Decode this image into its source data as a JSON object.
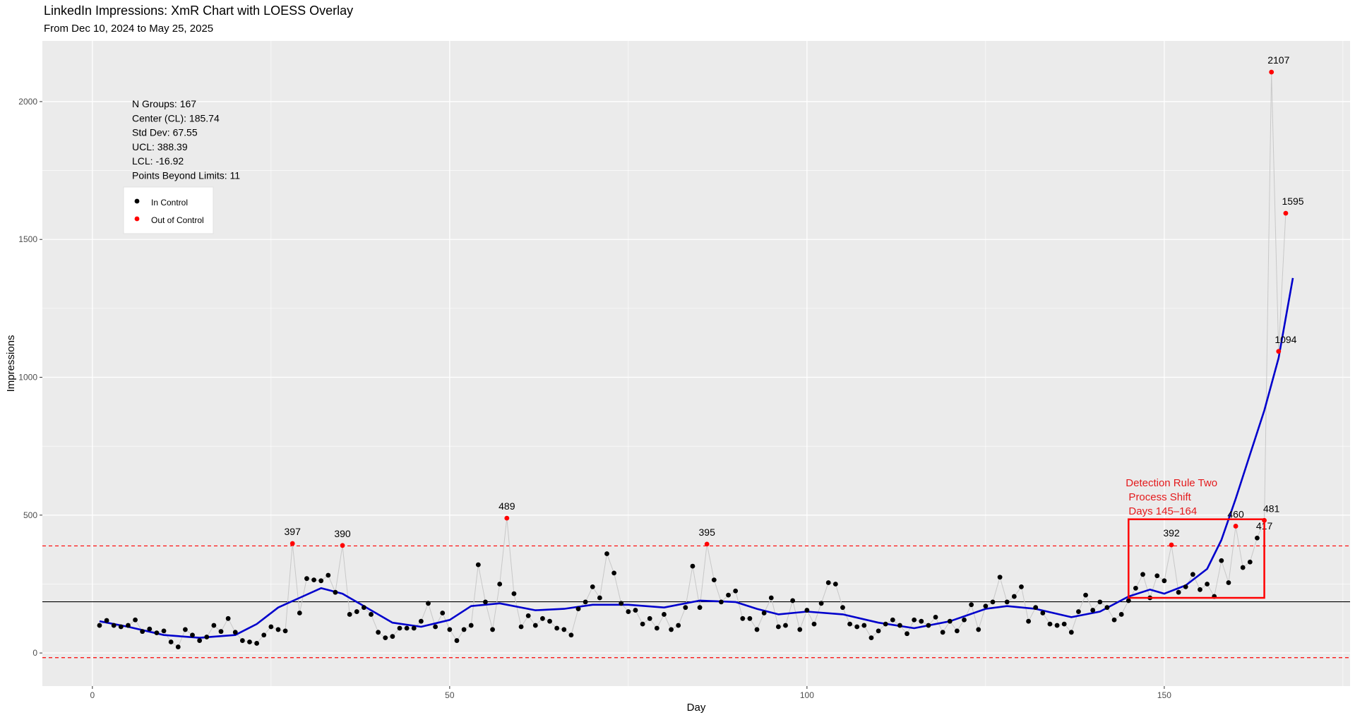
{
  "header": {
    "title": "LinkedIn Impressions: XmR Chart with LOESS Overlay",
    "subtitle": "From Dec 10, 2024 to May 25, 2025"
  },
  "colors": {
    "panel": "#ebebeb",
    "grid": "#ffffff",
    "series_line": "#c8c8c8",
    "in_control": "#000000",
    "out_of_control": "#ff0000",
    "loess": "#0000cc",
    "center": "#000000",
    "limits": "#ff0000",
    "rule_box": "#ff0000"
  },
  "stats": {
    "lines": [
      "N Groups: 167",
      "Center (CL): 185.74",
      "Std Dev: 67.55",
      "UCL: 388.39",
      "LCL: -16.92",
      "Points Beyond Limits: 11"
    ]
  },
  "legend": {
    "in_control": "In Control",
    "out_of_control": "Out of Control"
  },
  "chart_data": {
    "type": "scatter",
    "xlabel": "Day",
    "ylabel": "Impressions",
    "xlim": [
      -7,
      176
    ],
    "ylim": [
      -120,
      2220
    ],
    "x_ticks": [
      0,
      50,
      100,
      150
    ],
    "y_ticks": [
      0,
      500,
      1000,
      1500,
      2000
    ],
    "center_line": 185.74,
    "ucl": 388.39,
    "lcl": -16.92,
    "values": [
      100,
      118,
      100,
      95,
      100,
      120,
      78,
      87,
      73,
      80,
      40,
      22,
      85,
      65,
      45,
      58,
      100,
      78,
      125,
      75,
      45,
      40,
      35,
      65,
      95,
      85,
      80,
      397,
      145,
      270,
      265,
      262,
      282,
      220,
      390,
      140,
      150,
      165,
      140,
      75,
      55,
      60,
      90,
      90,
      90,
      115,
      180,
      95,
      145,
      85,
      45,
      85,
      100,
      320,
      185,
      85,
      250,
      489,
      215,
      95,
      135,
      100,
      125,
      115,
      90,
      85,
      65,
      160,
      185,
      240,
      200,
      360,
      290,
      180,
      150,
      155,
      105,
      125,
      90,
      140,
      85,
      100,
      165,
      315,
      165,
      395,
      265,
      185,
      210,
      225,
      125,
      125,
      85,
      145,
      200,
      95,
      100,
      190,
      85,
      155,
      105,
      180,
      255,
      250,
      165,
      105,
      95,
      100,
      55,
      80,
      105,
      120,
      100,
      70,
      120,
      115,
      100,
      130,
      75,
      115,
      80,
      120,
      175,
      85,
      170,
      185,
      275,
      185,
      205,
      240,
      115,
      165,
      145,
      105,
      100,
      105,
      75,
      150,
      210,
      155,
      185,
      165,
      120,
      140,
      190,
      235,
      285,
      200,
      280,
      262,
      392,
      220,
      240,
      285,
      230,
      250,
      205,
      335,
      255,
      460,
      310,
      330,
      417,
      481,
      2107,
      1094,
      1595
    ],
    "out_of_control_labels": [
      {
        "day": 28,
        "value": 397,
        "label": "397"
      },
      {
        "day": 35,
        "value": 390,
        "label": "390"
      },
      {
        "day": 58,
        "value": 489,
        "label": "489"
      },
      {
        "day": 86,
        "value": 395,
        "label": "395"
      },
      {
        "day": 151,
        "value": 392,
        "label": "392"
      },
      {
        "day": 160,
        "value": 460,
        "label": "460"
      },
      {
        "day": 164,
        "value": 417,
        "label": "417"
      },
      {
        "day": 165,
        "value": 481,
        "label": "481"
      },
      {
        "day": 166,
        "value": 2107,
        "label": "2107"
      },
      {
        "day": 167,
        "value": 1094,
        "label": "1094"
      },
      {
        "day": 168,
        "value": 1595,
        "label": "1595"
      }
    ],
    "loess": {
      "x": [
        1,
        5,
        10,
        15,
        20,
        23,
        26,
        29,
        32,
        35,
        38,
        42,
        46,
        50,
        53,
        57,
        62,
        66,
        70,
        75,
        80,
        85,
        90,
        93,
        96,
        100,
        105,
        110,
        115,
        120,
        125,
        128,
        132,
        137,
        141,
        145,
        148,
        150,
        153,
        156,
        158,
        160,
        162,
        164,
        166,
        168
      ],
      "y": [
        115,
        95,
        65,
        55,
        65,
        105,
        165,
        200,
        235,
        215,
        170,
        110,
        95,
        120,
        170,
        180,
        155,
        160,
        175,
        175,
        165,
        190,
        185,
        160,
        140,
        150,
        140,
        110,
        90,
        115,
        160,
        170,
        160,
        130,
        150,
        205,
        230,
        215,
        245,
        305,
        410,
        560,
        720,
        880,
        1070,
        1360
      ]
    },
    "rule_box": {
      "x0": 145,
      "x1": 164,
      "y0": 200,
      "y1": 485,
      "lines": [
        "Detection Rule Two",
        " Process Shift",
        " Days 145–164"
      ]
    }
  }
}
